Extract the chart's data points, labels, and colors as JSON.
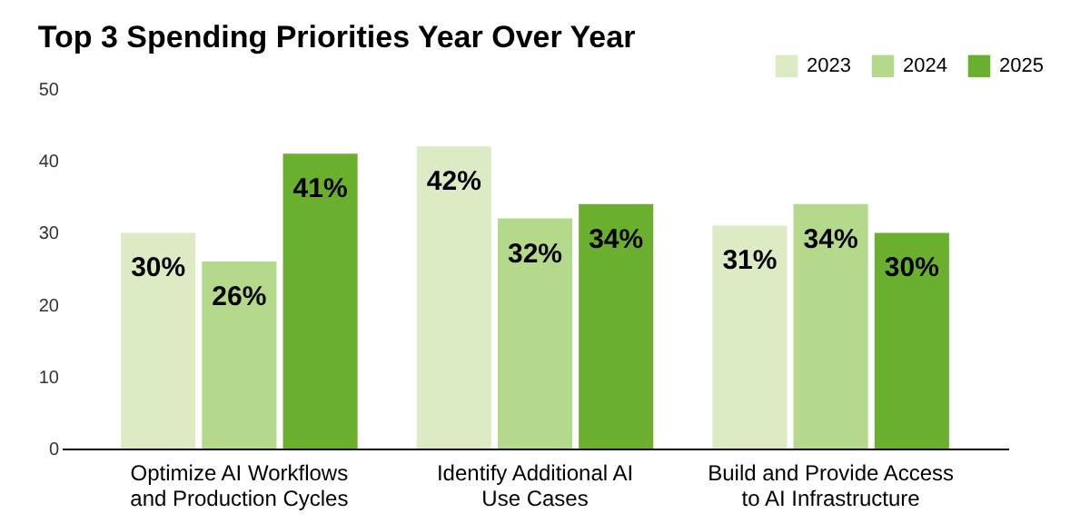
{
  "chart_data": {
    "type": "bar",
    "title": "Top 3 Spending Priorities Year Over Year",
    "categories": [
      "Optimize AI Workflows and Production Cycles",
      "Identify Additional AI Use Cases",
      "Build and Provide Access to AI Infrastructure"
    ],
    "series": [
      {
        "name": "2023",
        "color": "#dcebc4",
        "values": [
          30,
          42,
          31
        ],
        "value_labels": [
          "30%",
          "42%",
          "31%"
        ]
      },
      {
        "name": "2024",
        "color": "#b5d98a",
        "values": [
          26,
          32,
          34
        ],
        "value_labels": [
          "26%",
          "32%",
          "34%"
        ]
      },
      {
        "name": "2025",
        "color": "#6aaf2e",
        "values": [
          41,
          34,
          30
        ],
        "value_labels": [
          "41%",
          "34%",
          "30%"
        ]
      }
    ],
    "ylim": [
      0,
      50
    ],
    "yticks": [
      0,
      10,
      20,
      30,
      40,
      50
    ],
    "grid": false,
    "legend": "top right"
  }
}
